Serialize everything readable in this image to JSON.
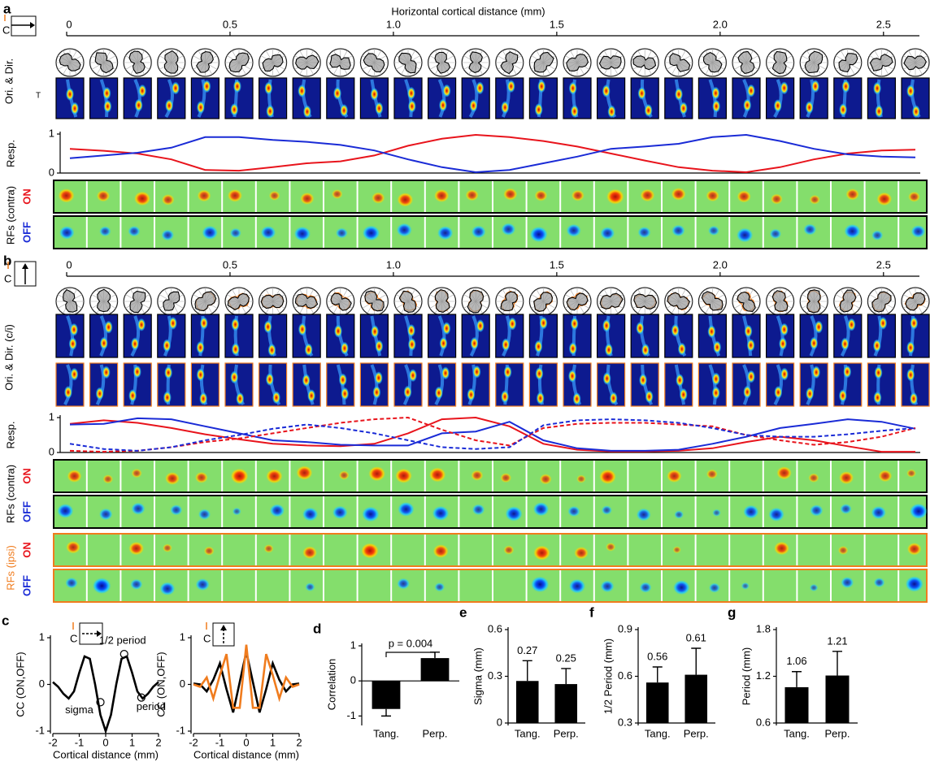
{
  "figure": {
    "a": {
      "label": "a",
      "axis_title": "Horizontal cortical distance (mm)",
      "axis_lim": [
        0,
        2.61
      ],
      "axis_ticks": [
        0,
        0.5,
        {
          "value": 1,
          "label": "1.0"
        },
        1.5,
        {
          "value": 2,
          "label": "2.0"
        },
        2.5
      ],
      "camera": "C",
      "ori": "Ori. & Dir.",
      "rf": "RFs (contra)",
      "on": "ON",
      "off": "OFF"
    },
    "b": {
      "label": "b",
      "axis_lim": [
        0,
        2.61
      ],
      "axis_ticks": [
        0,
        0.5,
        {
          "value": 1,
          "label": "1.0"
        },
        1.5,
        {
          "value": 2,
          "label": "2.0"
        },
        2.5
      ],
      "camera": "C",
      "ori": "Ori. & Dir. (c/i)",
      "rf_contra": "RFs (contra)",
      "rf_ipsi": "RFs (ipsi)",
      "on_contra": "ON",
      "off_contra": "OFF",
      "on_ipsi": "ON",
      "off_ipsi": "OFF"
    },
    "c_camera_left": "C",
    "c_camera_right": "C",
    "heat_tick": "T"
  },
  "chart_data": [
    {
      "type": "line",
      "ylabel": "Resp.",
      "ylim": [
        0,
        1
      ],
      "yticks": [
        0,
        1
      ],
      "series": [
        {
          "color": "#e8141c",
          "values": [
            0.62,
            0.57,
            0.5,
            0.35,
            0.08,
            0.06,
            0.15,
            0.25,
            0.3,
            0.45,
            0.7,
            0.88,
            0.98,
            0.92,
            0.82,
            0.68,
            0.5,
            0.32,
            0.15,
            0.06,
            0.02,
            0.15,
            0.35,
            0.5,
            0.58,
            0.6
          ]
        },
        {
          "color": "#1a2bd6",
          "values": [
            0.38,
            0.45,
            0.52,
            0.65,
            0.92,
            0.92,
            0.85,
            0.8,
            0.72,
            0.58,
            0.35,
            0.15,
            0.02,
            0.08,
            0.25,
            0.42,
            0.62,
            0.68,
            0.75,
            0.92,
            0.98,
            0.82,
            0.62,
            0.48,
            0.42,
            0.4
          ]
        }
      ]
    },
    {
      "type": "line",
      "ylabel": "Resp.",
      "ylim": [
        0,
        1
      ],
      "yticks": [
        0,
        1
      ],
      "series": [
        {
          "color": "#e8141c",
          "dashed": false,
          "values": [
            0.82,
            0.92,
            0.85,
            0.7,
            0.52,
            0.38,
            0.25,
            0.2,
            0.18,
            0.25,
            0.55,
            0.95,
            1.0,
            0.75,
            0.25,
            0.08,
            0.03,
            0.03,
            0.05,
            0.12,
            0.3,
            0.45,
            0.35,
            0.18,
            0.02,
            0.02
          ]
        },
        {
          "color": "#1a2bd6",
          "dashed": false,
          "values": [
            0.8,
            0.82,
            0.98,
            0.95,
            0.75,
            0.55,
            0.35,
            0.3,
            0.22,
            0.2,
            0.2,
            0.55,
            0.6,
            0.88,
            0.35,
            0.12,
            0.05,
            0.05,
            0.08,
            0.25,
            0.45,
            0.7,
            0.82,
            0.95,
            0.88,
            0.68
          ]
        },
        {
          "color": "#e8141c",
          "dashed": true,
          "values": [
            0.05,
            0.02,
            0.05,
            0.15,
            0.3,
            0.4,
            0.55,
            0.7,
            0.85,
            0.95,
            1.0,
            0.65,
            0.35,
            0.2,
            0.7,
            0.82,
            0.85,
            0.85,
            0.8,
            0.75,
            0.5,
            0.35,
            0.22,
            0.3,
            0.45,
            0.7
          ]
        },
        {
          "color": "#1a2bd6",
          "dashed": true,
          "values": [
            0.25,
            0.1,
            0.05,
            0.15,
            0.35,
            0.5,
            0.68,
            0.8,
            0.7,
            0.55,
            0.35,
            0.15,
            0.1,
            0.15,
            0.78,
            0.92,
            0.95,
            0.92,
            0.85,
            0.7,
            0.5,
            0.45,
            0.45,
            0.52,
            0.62,
            0.7
          ]
        }
      ]
    },
    {
      "type": "line",
      "panel": "c",
      "xlabel": "Cortical distance (mm)",
      "ylabel": "CC (ON,OFF)",
      "xlim": [
        -2,
        2
      ],
      "xticks": [
        -2,
        -1,
        0,
        1,
        2
      ],
      "ylim": [
        -1,
        1
      ],
      "yticks": [
        -1,
        0,
        1
      ],
      "x": [
        -2,
        -1.8,
        -1.6,
        -1.4,
        -1.2,
        -1,
        -0.8,
        -0.6,
        -0.4,
        -0.2,
        0,
        0.2,
        0.4,
        0.6,
        0.8,
        1,
        1.2,
        1.4,
        1.6,
        1.8,
        2
      ],
      "series": [
        {
          "color": "#000000",
          "values": [
            0.05,
            -0.05,
            -0.2,
            -0.3,
            -0.15,
            0.25,
            0.6,
            0.55,
            0,
            -0.65,
            -1,
            -0.65,
            0,
            0.55,
            0.6,
            0.25,
            -0.15,
            -0.3,
            -0.2,
            -0.05,
            0.05
          ]
        }
      ],
      "points": [
        {
          "label": "sigma",
          "x": -0.2,
          "y": -0.38
        },
        {
          "label": "1/2 period",
          "x": 0.7,
          "y": 0.65
        },
        {
          "label": "period",
          "x": 1.35,
          "y": -0.28
        }
      ]
    },
    {
      "type": "line",
      "xlabel": "Cortical distance (mm)",
      "ylabel": "CC (ON,OFF)",
      "xlim": [
        -2,
        2
      ],
      "xticks": [
        -2,
        -1,
        0,
        1,
        2
      ],
      "ylim": [
        -1,
        1
      ],
      "yticks": [
        -1,
        0,
        1
      ],
      "x": [
        -2,
        -1.75,
        -1.5,
        -1.25,
        -1,
        -0.75,
        -0.5,
        -0.25,
        0,
        0.25,
        0.5,
        0.75,
        1,
        1.25,
        1.5,
        1.75,
        2
      ],
      "series": [
        {
          "color": "#000000",
          "values": [
            0.02,
            0,
            -0.15,
            0.1,
            0.45,
            -0.1,
            -0.6,
            0.05,
            0.7,
            0.05,
            -0.6,
            -0.1,
            0.45,
            0.1,
            -0.15,
            0,
            0.02
          ]
        },
        {
          "color": "#f07c1e",
          "values": [
            0,
            -0.05,
            0.15,
            -0.3,
            0.2,
            0.65,
            -0.5,
            -0.5,
            0.85,
            -0.5,
            -0.5,
            0.65,
            0.2,
            -0.3,
            0.15,
            -0.05,
            0
          ]
        }
      ]
    },
    {
      "type": "bar",
      "panel": "d",
      "ylabel": "Correlation",
      "categories": [
        "Tang.",
        "Perp."
      ],
      "values": [
        -0.8,
        0.65
      ],
      "errors": [
        0.2,
        0.17
      ],
      "color": "#000000",
      "ylim": [
        -1.2,
        1
      ],
      "yticks": [
        -1,
        0,
        1
      ],
      "annotation": "p = 0.004",
      "data_labels": false
    },
    {
      "type": "bar",
      "panel": "e",
      "ylabel": "Sigma (mm)",
      "categories": [
        "Tang.",
        "Perp."
      ],
      "values": [
        0.27,
        0.25
      ],
      "errors": [
        0.13,
        0.1
      ],
      "color": "#000000",
      "ylim": [
        0,
        0.6
      ],
      "yticks": [
        0,
        0.3,
        0.6
      ],
      "data_labels": true
    },
    {
      "type": "bar",
      "panel": "f",
      "ylabel": "1/2 Period (mm)",
      "categories": [
        "Tang.",
        "Perp."
      ],
      "values": [
        0.56,
        0.61
      ],
      "errors": [
        0.1,
        0.17
      ],
      "color": "#000000",
      "ylim": [
        0.3,
        0.9
      ],
      "yticks": [
        0.3,
        0.6,
        0.9
      ],
      "data_labels": true
    },
    {
      "type": "bar",
      "panel": "g",
      "ylabel": "Period (mm)",
      "categories": [
        "Tang.",
        "Perp."
      ],
      "values": [
        1.06,
        1.21
      ],
      "errors": [
        0.2,
        0.31
      ],
      "color": "#000000",
      "ylim": [
        0.6,
        1.8
      ],
      "yticks": [
        0.6,
        1.2,
        1.8
      ],
      "data_labels": true
    }
  ]
}
